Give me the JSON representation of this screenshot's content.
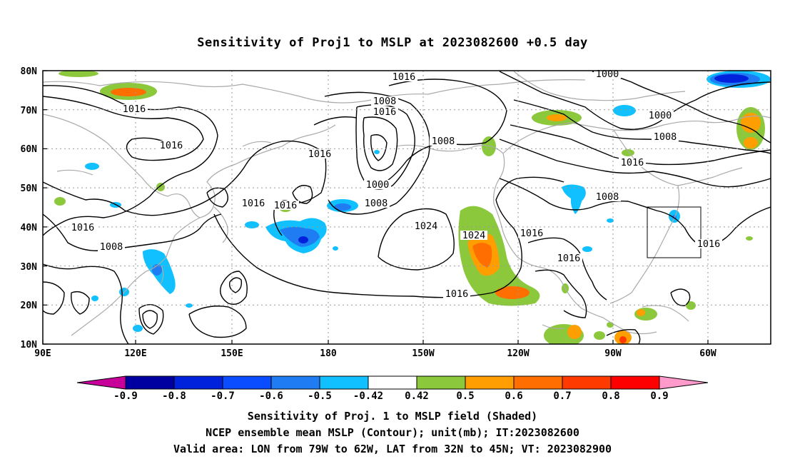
{
  "title": "Sensitivity of Proj1 to MSLP at 2023082600 +0.5 day",
  "lat_labels": [
    "80N",
    "70N",
    "60N",
    "50N",
    "40N",
    "30N",
    "20N",
    "10N"
  ],
  "lon_labels": [
    "90E",
    "120E",
    "150E",
    "180",
    "150W",
    "120W",
    "90W",
    "60W"
  ],
  "contour_labels": [
    {
      "text": "1016"
    },
    {
      "text": "1000"
    },
    {
      "text": "1008"
    },
    {
      "text": "1016"
    },
    {
      "text": "1016"
    },
    {
      "text": "1016"
    },
    {
      "text": "1008"
    },
    {
      "text": "1016"
    },
    {
      "text": "1000"
    },
    {
      "text": "1008"
    },
    {
      "text": "1016"
    },
    {
      "text": "1000"
    },
    {
      "text": "1008"
    },
    {
      "text": "1016"
    },
    {
      "text": "1024"
    },
    {
      "text": "1016"
    },
    {
      "text": "1008"
    },
    {
      "text": "1008"
    },
    {
      "text": "1024"
    },
    {
      "text": "1016"
    },
    {
      "text": "1016"
    },
    {
      "text": "1016"
    },
    {
      "text": "1016"
    },
    {
      "text": "1016"
    }
  ],
  "colorbar": {
    "colors": [
      "#c8009a",
      "#0000a0",
      "#0022dd",
      "#0a4cff",
      "#1f7cf2",
      "#10c0ff",
      "#ffffff",
      "#8cc83c",
      "#ff9e00",
      "#ff6e00",
      "#ff3a00",
      "#ff0000",
      "#ff9acb"
    ],
    "labels": [
      "-0.9",
      "-0.8",
      "-0.7",
      "-0.6",
      "-0.5",
      "-0.42",
      "0.42",
      "0.5",
      "0.6",
      "0.7",
      "0.8",
      "0.9"
    ]
  },
  "captions": [
    "Sensitivity of Proj. 1 to MSLP field (Shaded)",
    "NCEP ensemble mean MSLP (Contour); unit(mb); IT:2023082600",
    "Valid area: LON from 79W to 62W, LAT from 32N to 45N; VT: 2023082900"
  ]
}
